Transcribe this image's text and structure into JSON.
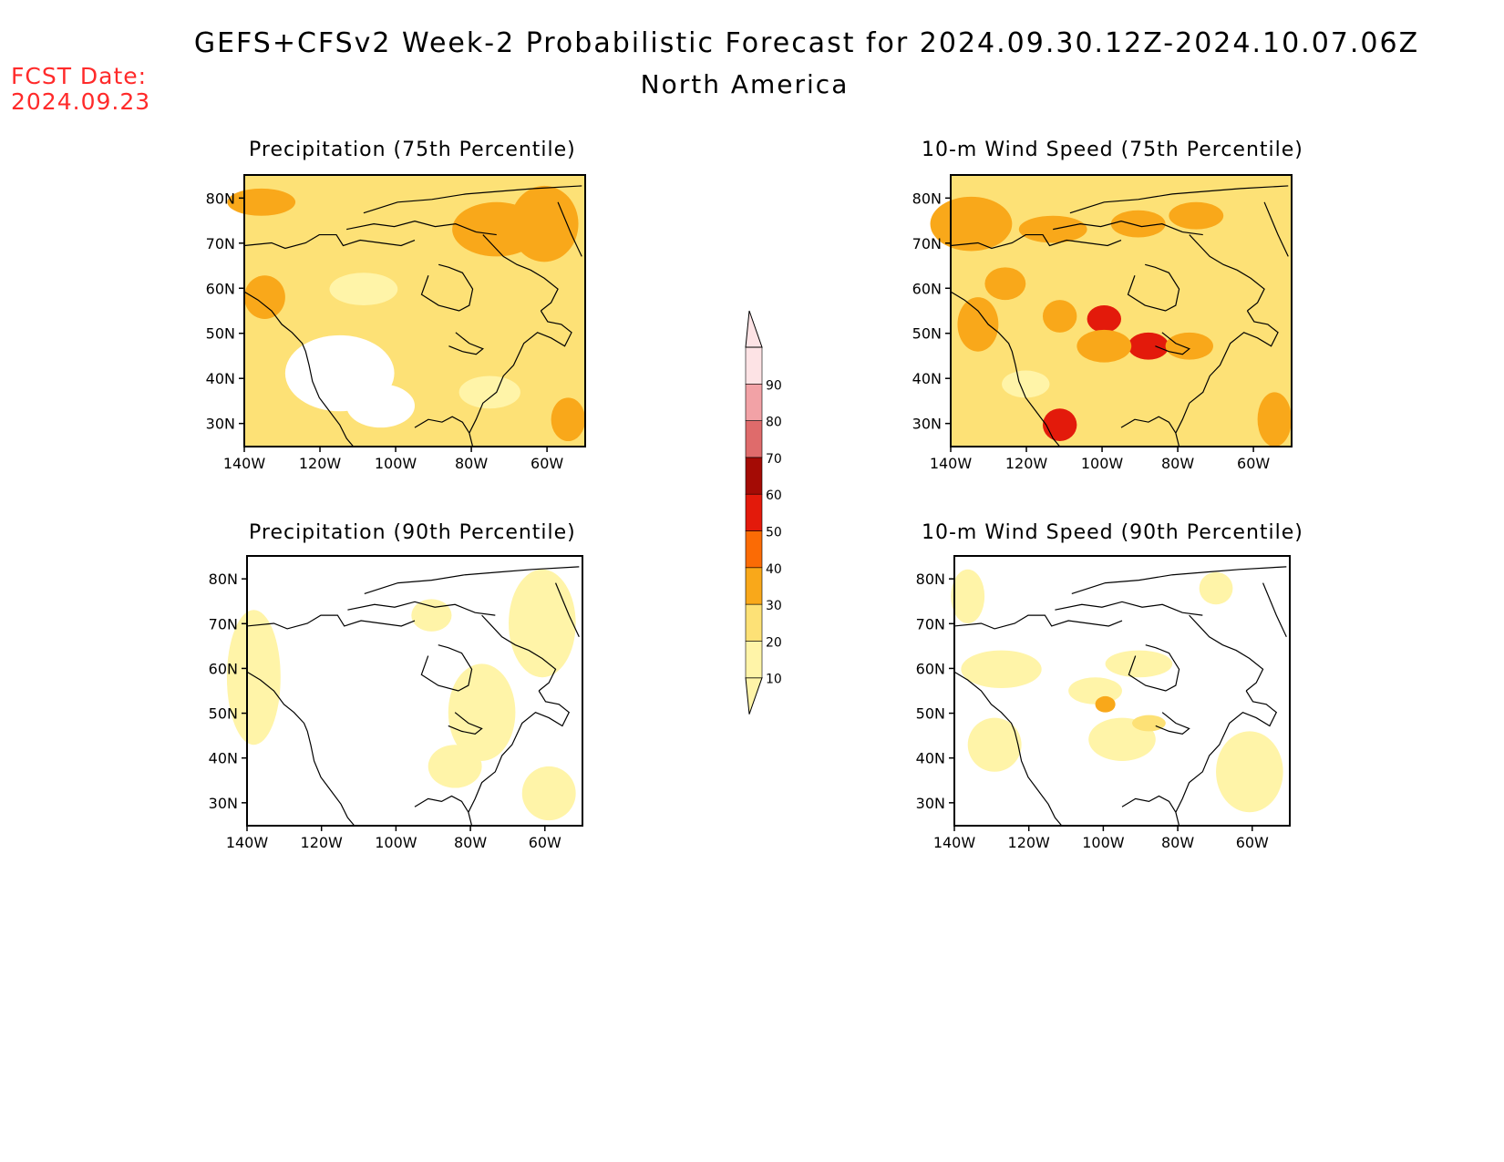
{
  "title": "GEFS+CFSv2 Week-2 Probabilistic Forecast for 2024.09.30.12Z-2024.10.07.06Z",
  "subtitle": "North America",
  "forecast_date": {
    "label": "FCST Date:",
    "value": "2024.09.23"
  },
  "colors": {
    "c10": "#fff4a8",
    "c20": "#fde176",
    "c30": "#f9a81a",
    "c40": "#fb6b05",
    "c50": "#e31a0b",
    "c60": "#a40b05",
    "c70": "#df6b6b",
    "c80": "#f2a2a6",
    "c90": "#fde3e5",
    "fcst_date": "#ff2a2a"
  },
  "colorbar": {
    "levels": [
      "10",
      "20",
      "30",
      "40",
      "50",
      "60",
      "70",
      "80",
      "90"
    ]
  },
  "panels": [
    {
      "id": "p75",
      "title": "Precipitation (75th Percentile)",
      "background": "c20",
      "lat_labels": [
        "80N",
        "70N",
        "60N",
        "50N",
        "40N",
        "30N"
      ],
      "lon_labels": [
        "140W",
        "120W",
        "100W",
        "80W",
        "60W"
      ]
    },
    {
      "id": "w75",
      "title": "10-m Wind Speed (75th Percentile)",
      "background": "c20",
      "lat_labels": [
        "80N",
        "70N",
        "60N",
        "50N",
        "40N",
        "30N"
      ],
      "lon_labels": [
        "140W",
        "120W",
        "100W",
        "80W",
        "60W"
      ]
    },
    {
      "id": "p90",
      "title": "Precipitation (90th Percentile)",
      "background": "white",
      "lat_labels": [
        "80N",
        "70N",
        "60N",
        "50N",
        "40N",
        "30N"
      ],
      "lon_labels": [
        "140W",
        "120W",
        "100W",
        "80W",
        "60W"
      ]
    },
    {
      "id": "w90",
      "title": "10-m Wind Speed (90th Percentile)",
      "background": "white",
      "lat_labels": [
        "80N",
        "70N",
        "60N",
        "50N",
        "40N",
        "30N"
      ],
      "lon_labels": [
        "140W",
        "120W",
        "100W",
        "80W",
        "60W"
      ]
    }
  ]
}
